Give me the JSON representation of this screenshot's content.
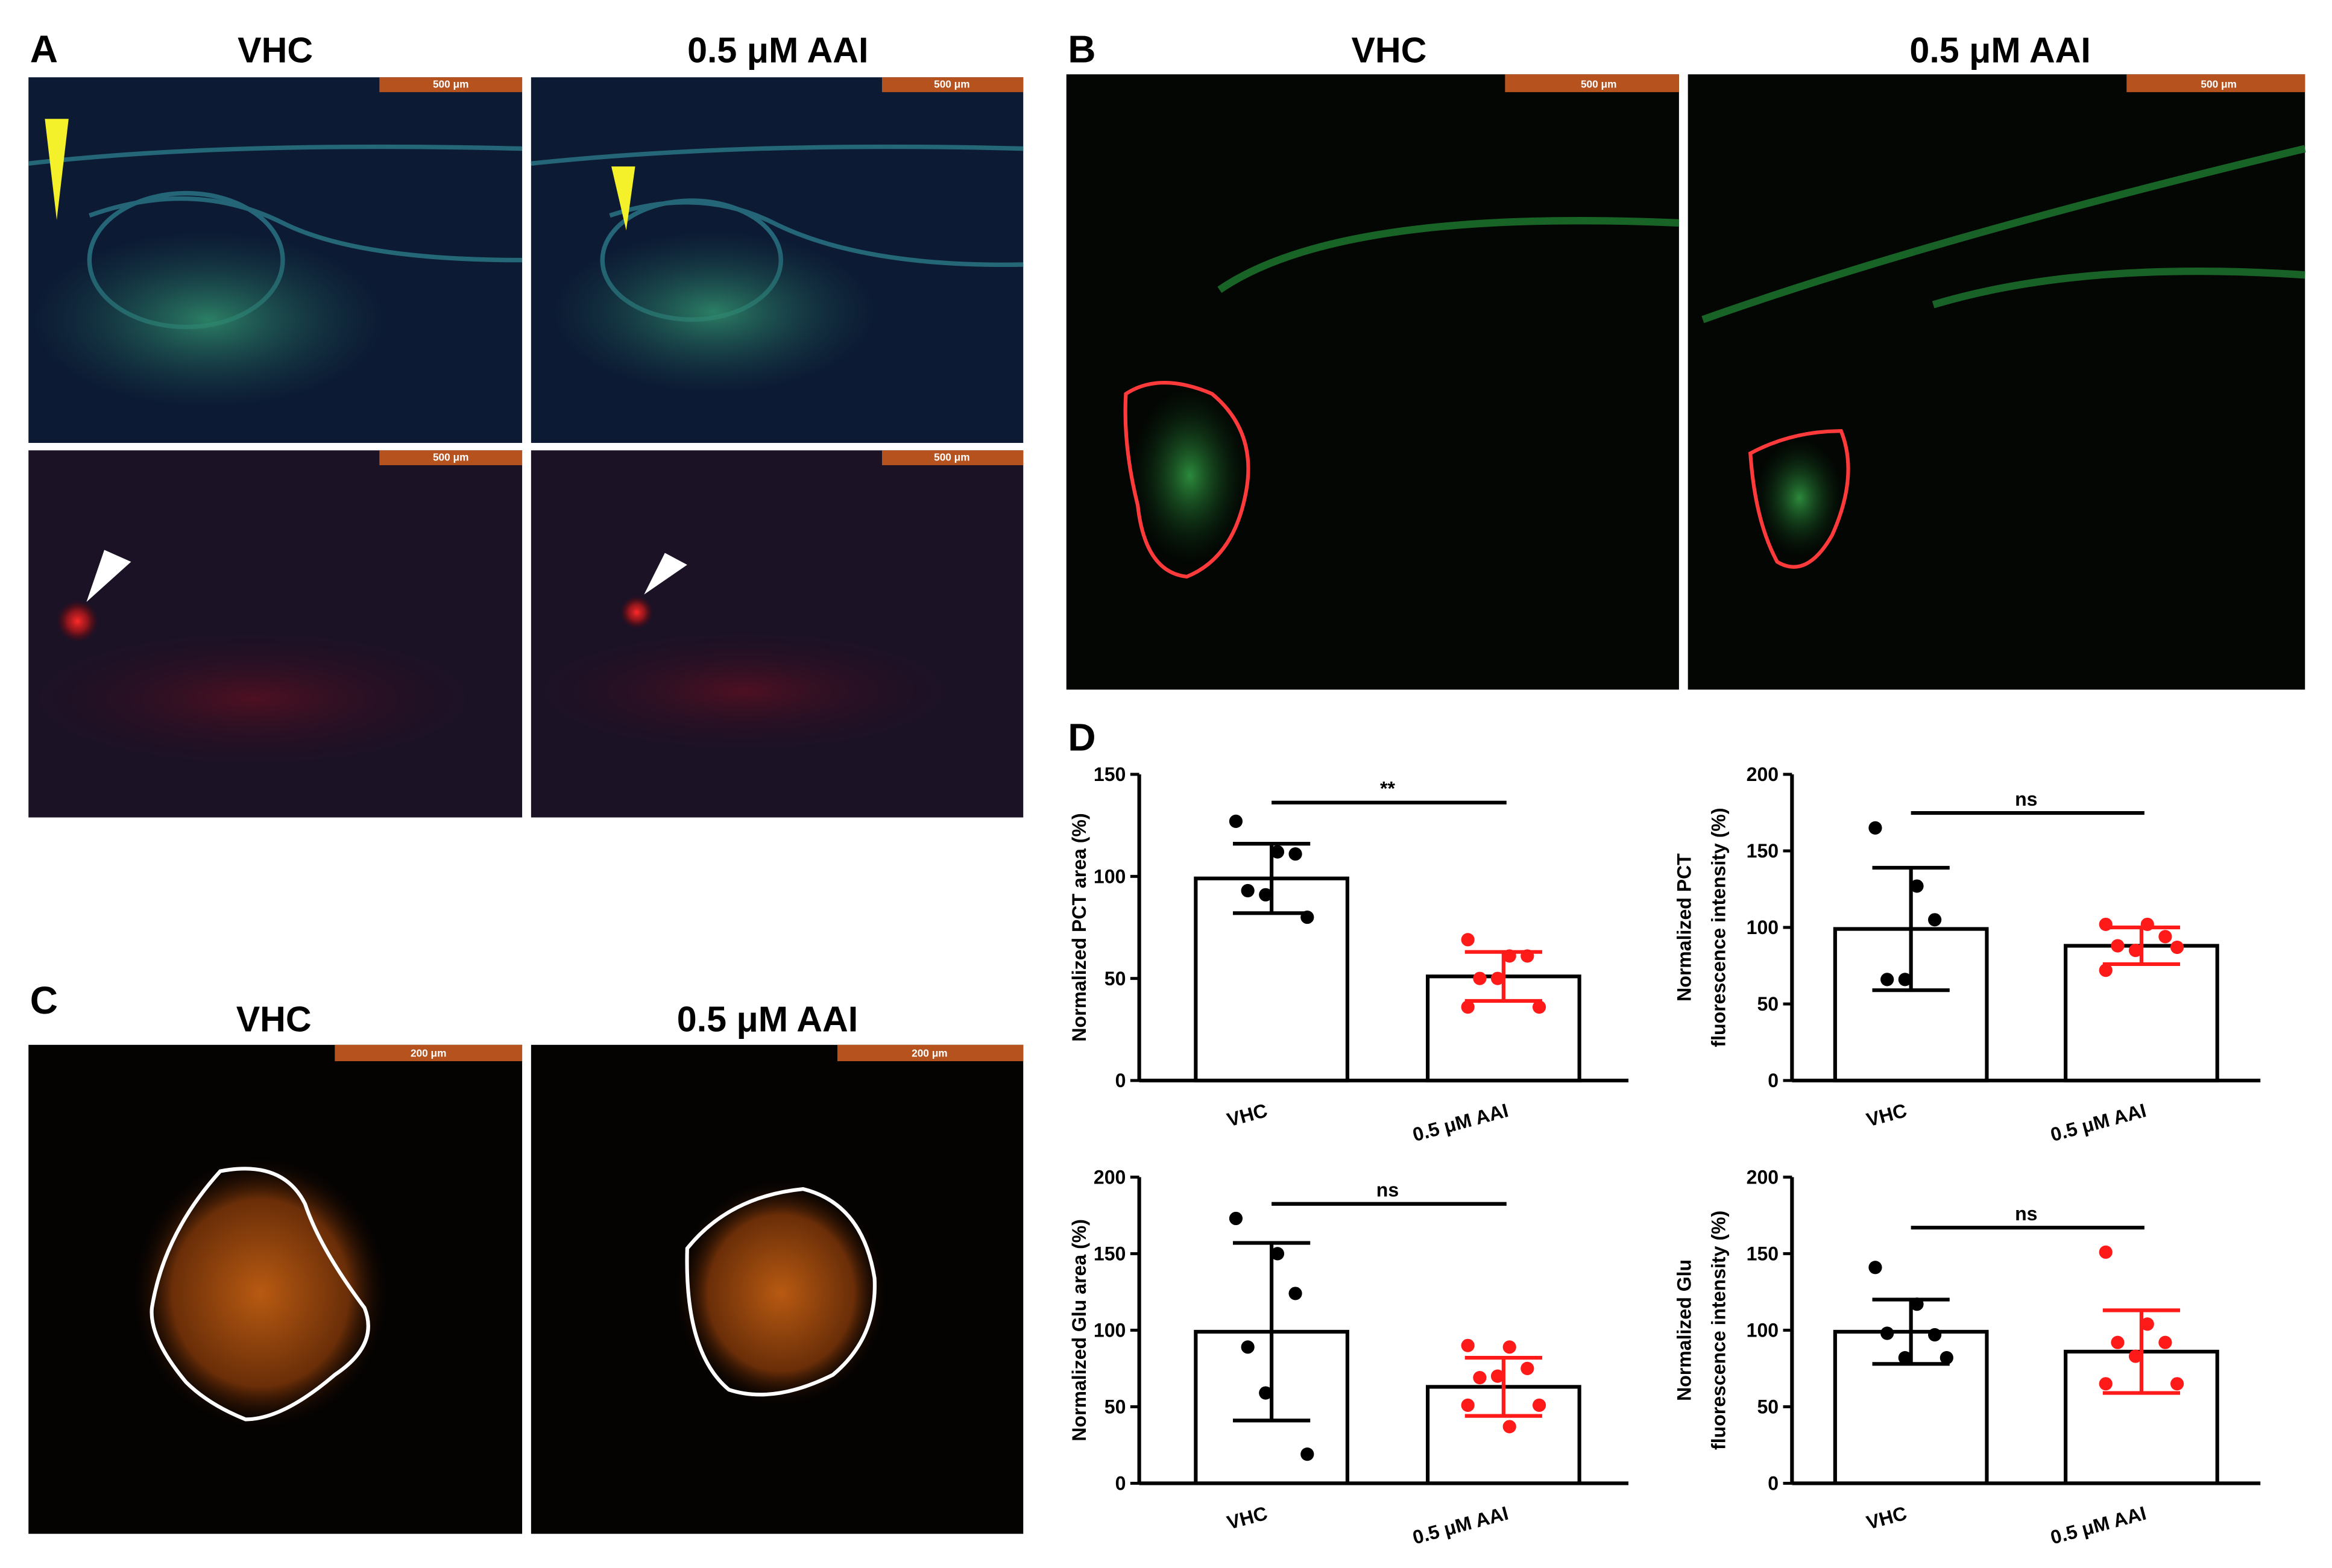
{
  "figure": {
    "panels": [
      {
        "label": "A",
        "titles": [
          "VHC",
          "0.5 μM AAI"
        ],
        "scale_bar": "500 μm"
      },
      {
        "label": "B",
        "titles": [
          "VHC",
          "0.5 μM AAI"
        ],
        "scale_bar": "500 μm"
      },
      {
        "label": "C",
        "titles": [
          "VHC",
          "0.5 μM AAI"
        ],
        "scale_bar": "200 μm"
      },
      {
        "label": "D"
      }
    ]
  },
  "chart_data": [
    {
      "type": "bar",
      "y_label": [
        "Normalized PCT area (%)"
      ],
      "categories": [
        "VHC",
        "0.5 μM AAI"
      ],
      "values": [
        99,
        51
      ],
      "errors": [
        17,
        12
      ],
      "point_colors": [
        "#000000",
        "#ff1a1a"
      ],
      "points": [
        [
          127,
          112,
          111,
          93,
          91,
          80
        ],
        [
          69,
          61,
          61,
          50,
          50,
          36,
          36
        ]
      ],
      "annotation": "**",
      "ylim": [
        0,
        150
      ],
      "yticks": [
        0,
        50,
        100,
        150
      ]
    },
    {
      "type": "bar",
      "y_label": [
        "Normalized PCT",
        "fluorescence intensity (%)"
      ],
      "categories": [
        "VHC",
        "0.5 μM AAI"
      ],
      "values": [
        99,
        88
      ],
      "errors": [
        40,
        12
      ],
      "point_colors": [
        "#000000",
        "#ff1a1a"
      ],
      "points": [
        [
          165,
          127,
          105,
          66,
          66
        ],
        [
          102,
          102,
          94,
          88,
          85,
          87,
          72
        ]
      ],
      "annotation": "ns",
      "ylim": [
        0,
        200
      ],
      "yticks": [
        0,
        50,
        100,
        150,
        200
      ]
    },
    {
      "type": "bar",
      "y_label": [
        "Normalized Glu area (%)"
      ],
      "categories": [
        "VHC",
        "0.5 μM AAI"
      ],
      "values": [
        99,
        63
      ],
      "errors": [
        58,
        19
      ],
      "point_colors": [
        "#000000",
        "#ff1a1a"
      ],
      "points": [
        [
          173,
          150,
          124,
          89,
          59,
          19
        ],
        [
          90,
          89,
          75,
          69,
          70,
          51,
          51,
          37
        ]
      ],
      "annotation": "ns",
      "ylim": [
        0,
        200
      ],
      "yticks": [
        0,
        50,
        100,
        150,
        200
      ]
    },
    {
      "type": "bar",
      "y_label": [
        "Normalized Glu",
        "fluorescence intensity (%)"
      ],
      "categories": [
        "VHC",
        "0.5 μM AAI"
      ],
      "values": [
        99,
        86
      ],
      "errors": [
        21,
        27
      ],
      "point_colors": [
        "#000000",
        "#ff1a1a"
      ],
      "points": [
        [
          141,
          117,
          97,
          98,
          82,
          82
        ],
        [
          151,
          104,
          92,
          92,
          83,
          65,
          65
        ]
      ],
      "annotation": "ns",
      "ylim": [
        0,
        200
      ],
      "yticks": [
        0,
        50,
        100,
        150,
        200
      ]
    }
  ]
}
